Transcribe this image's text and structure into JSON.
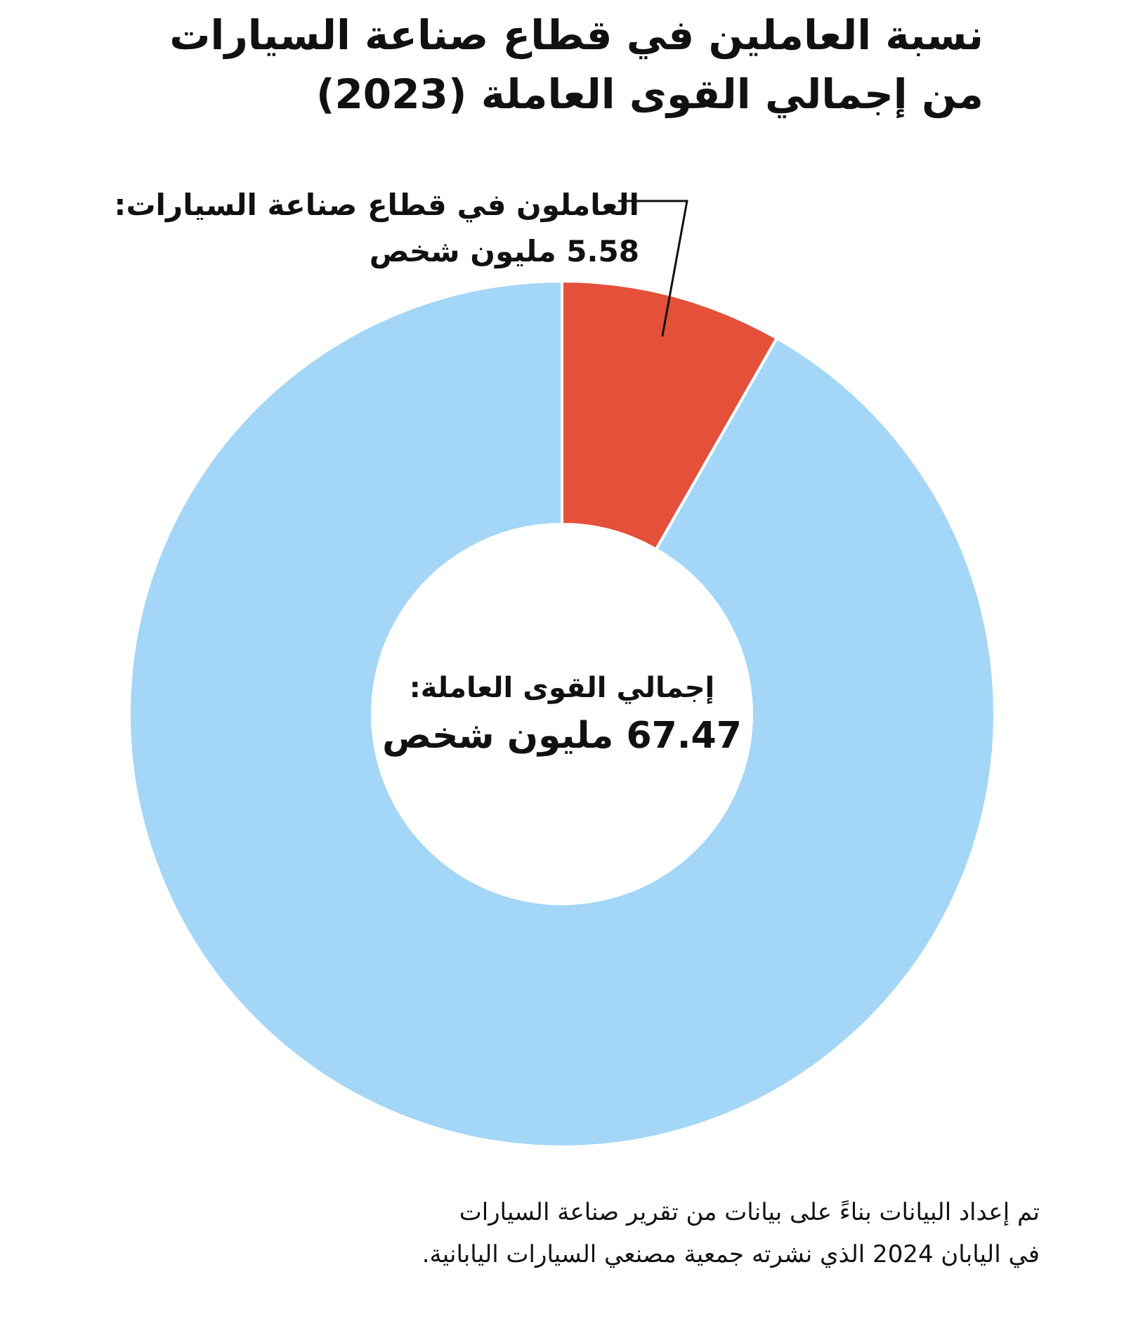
{
  "chart_data": {
    "type": "donut",
    "title": "نسبة العاملين في قطاع صناعة السيارات من إجمالي القوى العاملة (2023)",
    "categories": [
      null,
      null
    ],
    "values": [
      5.58,
      61.89
    ],
    "colors": [
      "#e4503a",
      "#a3d6f7"
    ],
    "value_labels": [
      "5.58 مليون شخص",
      null
    ],
    "annotations": [
      "إجمالي القوى العاملة:",
      "67.47 مليون شخص",
      "تم إعداد البيانات بناءً على بيانات من تقرير صناعة السيارات في اليابان 2024 الذي نشرته جمعية مصنعي السيارات اليابانية.",
      "العاملون في قطاع صناعة السيارات:"
    ]
  }
}
